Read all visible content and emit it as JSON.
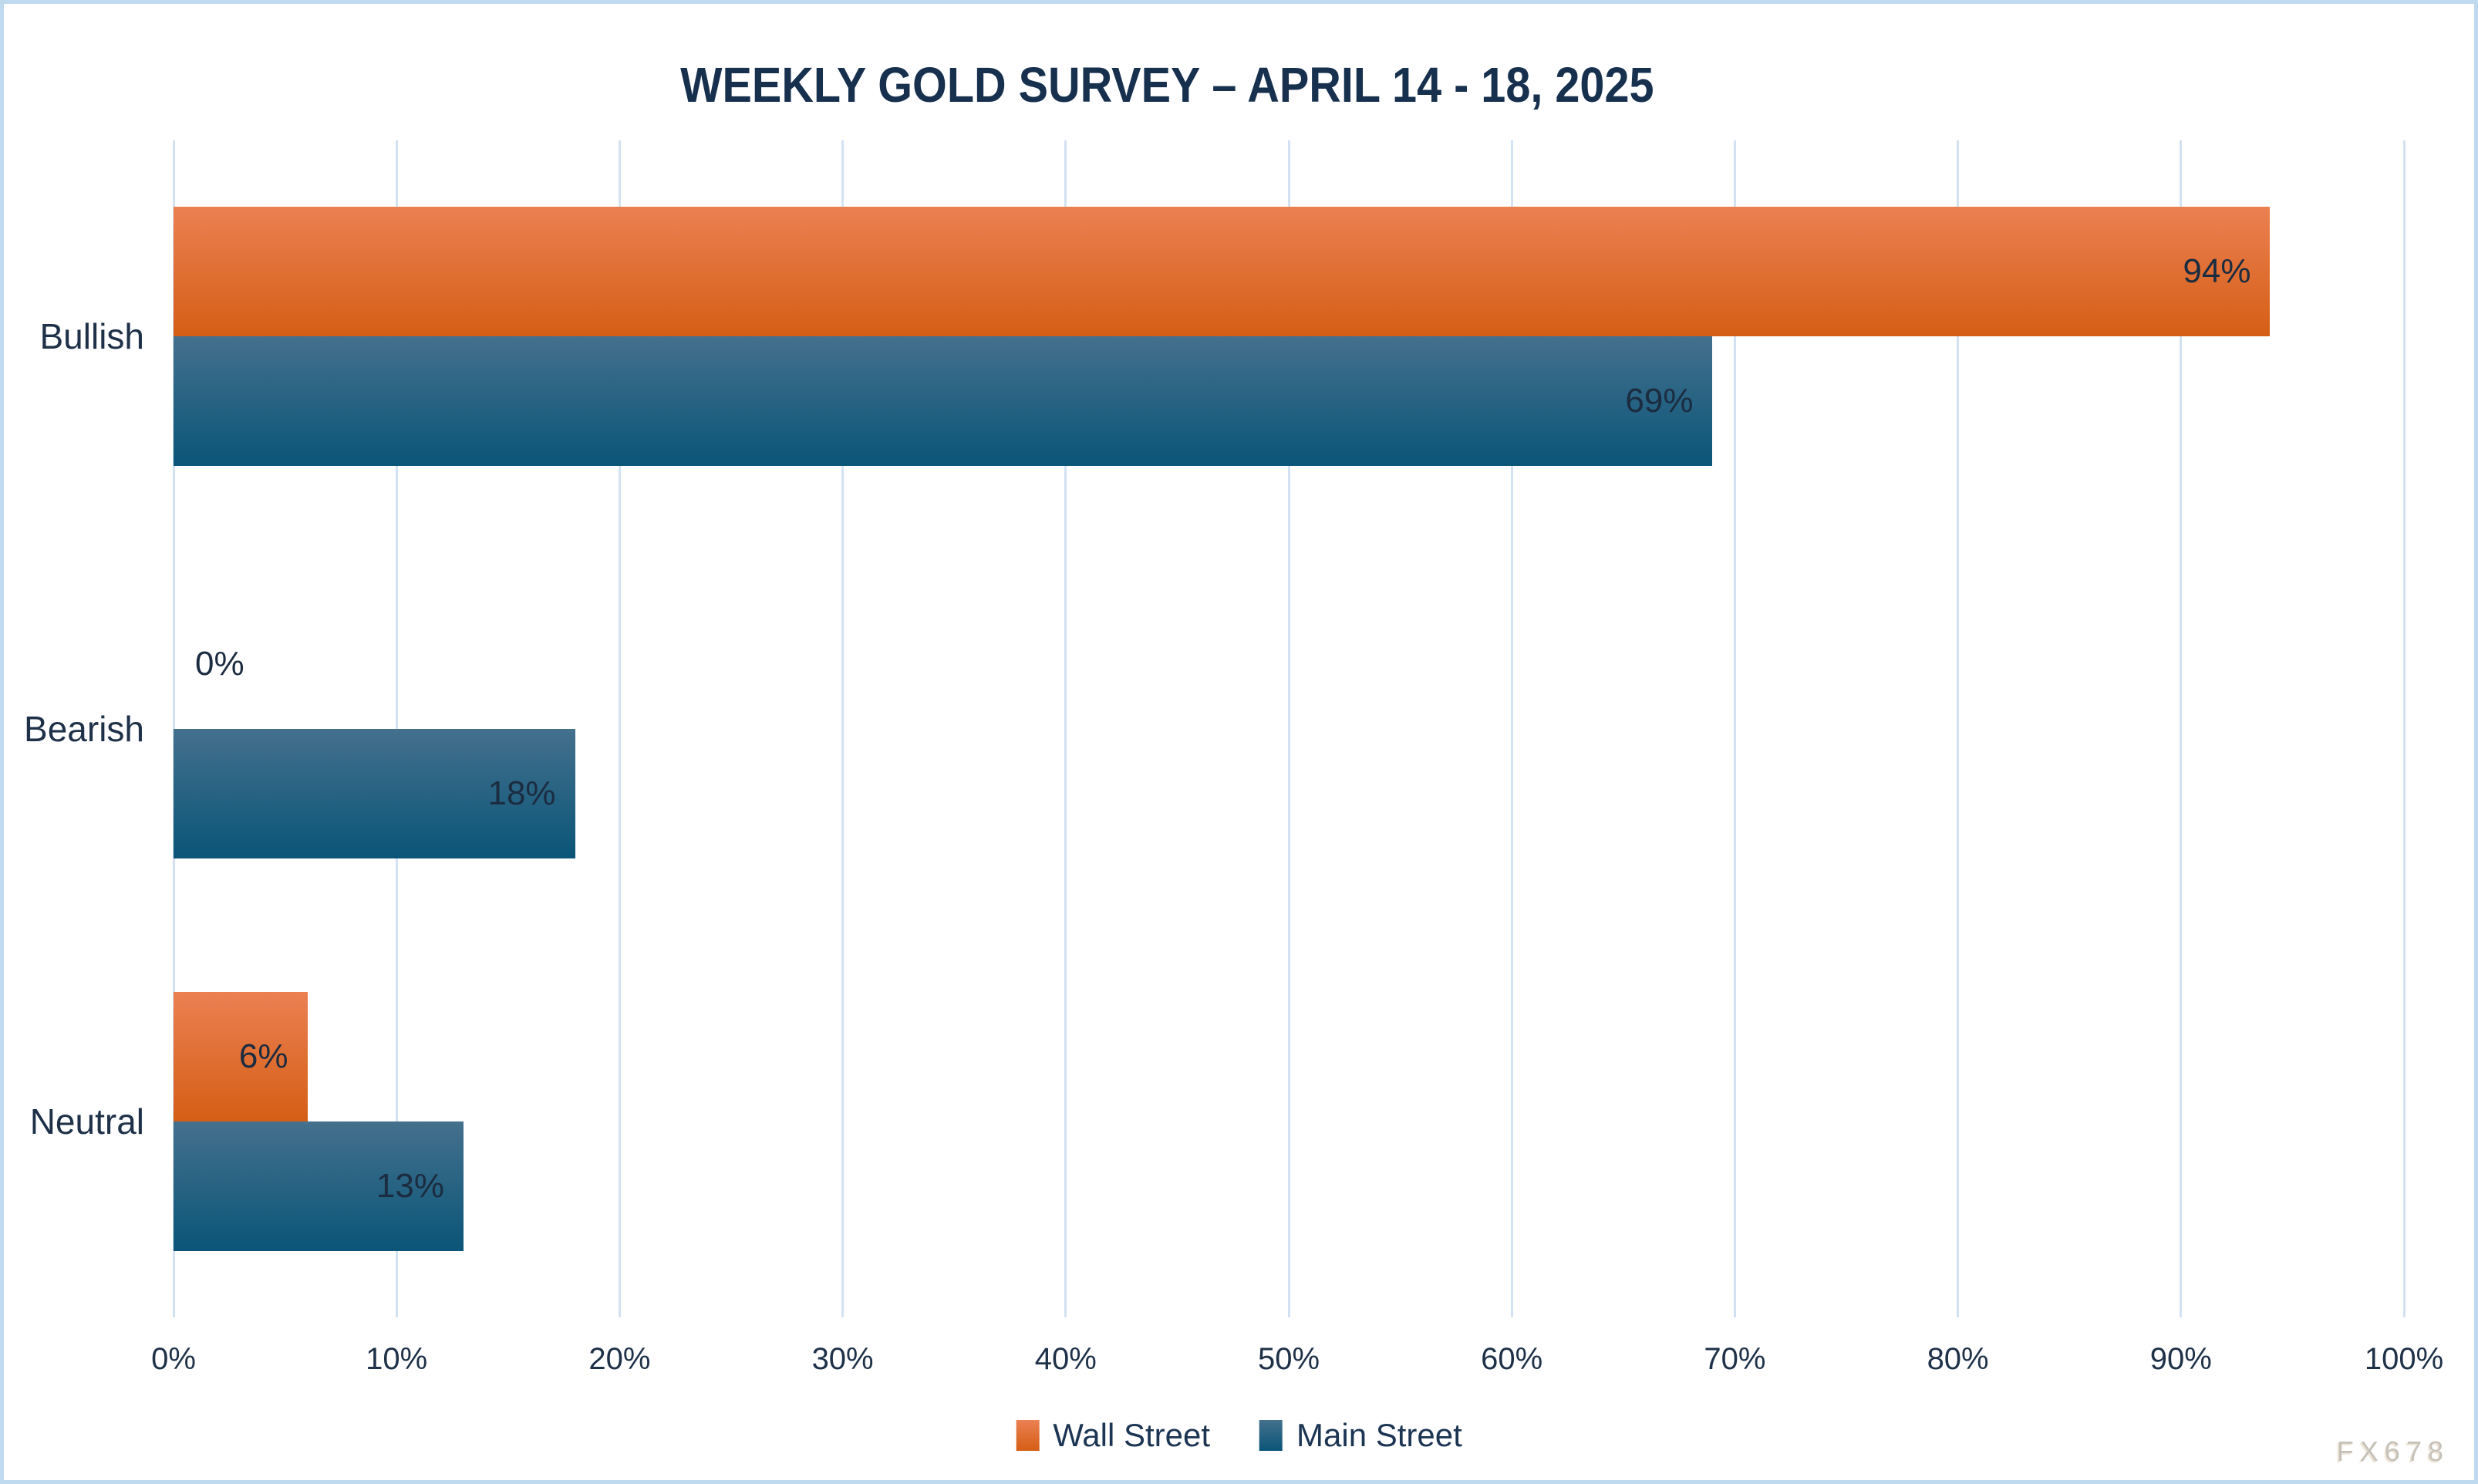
{
  "chart_data": {
    "type": "bar",
    "orientation": "horizontal",
    "title": "WEEKLY GOLD SURVEY – APRIL 14 - 18, 2025",
    "categories": [
      "Bullish",
      "Bearish",
      "Neutral"
    ],
    "series": [
      {
        "name": "Wall Street",
        "values": [
          94,
          0,
          6
        ],
        "labels": [
          "94%",
          "0%",
          "6%"
        ],
        "color_top": "#EB8052",
        "color_bottom": "#D55E15"
      },
      {
        "name": "Main Street",
        "values": [
          69,
          18,
          13
        ],
        "labels": [
          "69%",
          "18%",
          "13%"
        ],
        "color_top": "#44708D",
        "color_bottom": "#0A5578"
      }
    ],
    "xlabel": "",
    "ylabel": "",
    "x_axis": {
      "min": 0,
      "max": 100,
      "step": 10,
      "tick_labels": [
        "0%",
        "10%",
        "20%",
        "30%",
        "40%",
        "50%",
        "60%",
        "70%",
        "80%",
        "90%",
        "100%"
      ]
    },
    "grid": true,
    "legend": {
      "position": "bottom",
      "items": [
        "Wall Street",
        "Main Street"
      ]
    },
    "watermark": "FX678",
    "colors": {
      "title_text": "#16304E",
      "axis_text": "#1E3148",
      "data_label_text": "#1B2C40",
      "gridline": "#D3E2F3",
      "frame_border": "#BFD9EF",
      "wall_street_orange": "#D55E15",
      "main_street_blue": "#0A5578"
    }
  }
}
